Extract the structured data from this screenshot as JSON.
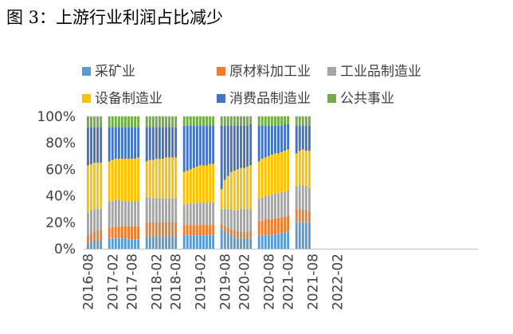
{
  "figure": {
    "title": "图 3：上游行业利润占比减少"
  },
  "chart_data": {
    "type": "bar",
    "stacked": true,
    "ylim": [
      0,
      100
    ],
    "y_ticks": [
      "0%",
      "20%",
      "40%",
      "60%",
      "80%",
      "100%"
    ],
    "x_tick_labels": [
      "2016-08",
      "2017-02",
      "2017-08",
      "2018-02",
      "2018-08",
      "2019-02",
      "2019-08",
      "2020-02",
      "2020-08",
      "2021-02",
      "2021-08",
      "2022-02"
    ],
    "legend_placement": "top",
    "grid": false,
    "groups": [
      {
        "months": 5
      },
      {
        "months": 10
      },
      {
        "months": 10
      },
      {
        "months": 10
      },
      {
        "months": 10
      },
      {
        "months": 10
      },
      {
        "months": 10
      },
      {
        "months": 5
      }
    ],
    "series": [
      {
        "name": "采矿业",
        "color": "#5B9BD5",
        "values": [
          4,
          5,
          6,
          6,
          6,
          8,
          8,
          8,
          8,
          8,
          8,
          7,
          7,
          7,
          7,
          9,
          9,
          9,
          9,
          9,
          9,
          9,
          9,
          9,
          9,
          10,
          10,
          10,
          10,
          10,
          10,
          10,
          10,
          10,
          10,
          15,
          13,
          11,
          10,
          9,
          8,
          8,
          8,
          8,
          8,
          10,
          10,
          10,
          10,
          10,
          11,
          11,
          12,
          12,
          13,
          20,
          20,
          20,
          20,
          20
        ]
      },
      {
        "name": "原材料加工业",
        "color": "#ED7D31",
        "values": [
          6,
          7,
          7,
          8,
          8,
          8,
          8,
          9,
          9,
          9,
          9,
          10,
          10,
          10,
          10,
          11,
          11,
          11,
          11,
          11,
          11,
          11,
          11,
          11,
          11,
          8,
          8,
          8,
          8,
          8,
          8,
          8,
          8,
          8,
          8,
          3,
          4,
          5,
          5,
          5,
          5,
          5,
          5,
          5,
          5,
          11,
          11,
          12,
          12,
          12,
          12,
          12,
          12,
          12,
          12,
          10,
          10,
          10,
          9,
          8
        ]
      },
      {
        "name": "工业品制造业",
        "color": "#A5A5A5",
        "values": [
          17,
          17,
          17,
          16,
          16,
          20,
          20,
          20,
          20,
          19,
          19,
          19,
          19,
          19,
          19,
          19,
          19,
          18,
          18,
          18,
          18,
          18,
          18,
          18,
          18,
          15,
          16,
          16,
          16,
          17,
          17,
          17,
          17,
          17,
          17,
          12,
          13,
          14,
          15,
          15,
          16,
          17,
          17,
          17,
          17,
          17,
          18,
          18,
          18,
          19,
          19,
          19,
          19,
          19,
          19,
          17,
          18,
          18,
          18,
          18
        ]
      },
      {
        "name": "设备制造业",
        "color": "#FFC000",
        "values": [
          36,
          35,
          35,
          35,
          35,
          30,
          31,
          31,
          31,
          32,
          32,
          32,
          32,
          32,
          33,
          27,
          28,
          29,
          30,
          30,
          30,
          31,
          31,
          31,
          31,
          25,
          25,
          26,
          27,
          27,
          28,
          28,
          28,
          29,
          29,
          15,
          22,
          25,
          28,
          30,
          31,
          31,
          31,
          32,
          33,
          28,
          29,
          29,
          30,
          30,
          30,
          30,
          30,
          31,
          31,
          25,
          26,
          27,
          27,
          28
        ]
      },
      {
        "name": "消费品制造业",
        "color": "#4472C4",
        "values": [
          29,
          28,
          27,
          27,
          27,
          26,
          25,
          24,
          24,
          24,
          24,
          24,
          24,
          24,
          23,
          26,
          25,
          25,
          24,
          24,
          24,
          23,
          23,
          23,
          23,
          35,
          34,
          33,
          32,
          31,
          30,
          30,
          30,
          29,
          29,
          48,
          41,
          38,
          35,
          34,
          33,
          32,
          32,
          31,
          31,
          27,
          25,
          24,
          23,
          22,
          21,
          21,
          20,
          20,
          19,
          21,
          19,
          18,
          19,
          19
        ]
      },
      {
        "name": "公共事业",
        "color": "#70AD47",
        "values": [
          8,
          8,
          8,
          8,
          8,
          8,
          8,
          8,
          8,
          8,
          8,
          8,
          8,
          8,
          8,
          8,
          8,
          8,
          8,
          8,
          8,
          8,
          8,
          8,
          8,
          7,
          7,
          7,
          7,
          7,
          7,
          7,
          7,
          7,
          7,
          7,
          7,
          7,
          7,
          7,
          7,
          7,
          7,
          7,
          6,
          7,
          7,
          7,
          7,
          7,
          7,
          7,
          7,
          6,
          6,
          7,
          7,
          7,
          7,
          7
        ]
      }
    ]
  }
}
